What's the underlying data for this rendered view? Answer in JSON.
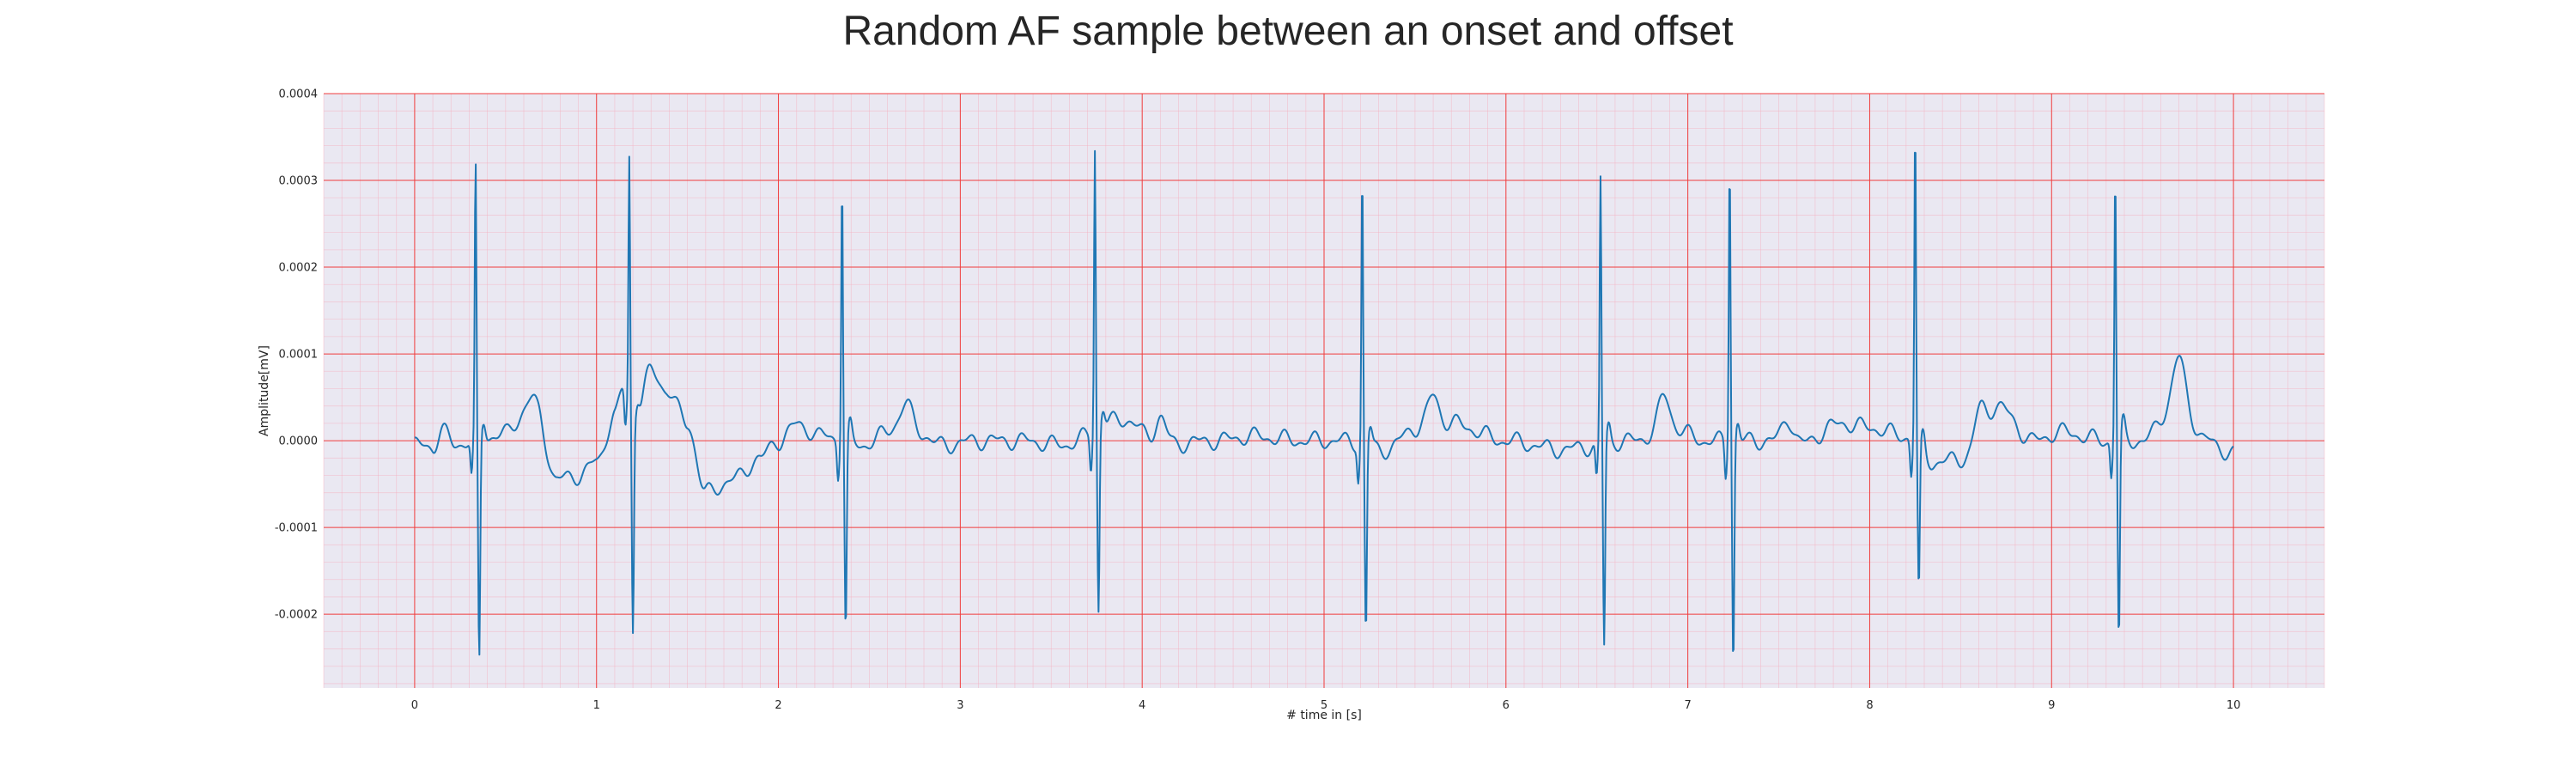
{
  "chart_data": {
    "type": "line",
    "title": "Random AF sample between an onset and offset",
    "xlabel": "# time in [s]",
    "ylabel": "Amplitude[mV]",
    "xlim": [
      -0.5,
      10.5
    ],
    "ylim": [
      -0.000285,
      0.0004
    ],
    "xticks": [
      0,
      1,
      2,
      3,
      4,
      5,
      6,
      7,
      8,
      9,
      10
    ],
    "yticks": [
      -0.0002,
      -0.0001,
      0.0,
      0.0001,
      0.0002,
      0.0003,
      0.0004
    ],
    "ytick_labels": [
      "-0.0002",
      "-0.0001",
      "0.0000",
      "0.0001",
      "0.0002",
      "0.0003",
      "0.0004"
    ],
    "grid": {
      "major": true,
      "minor": true,
      "major_color": "#f03c3c",
      "minor_color": "#f5b0c0"
    },
    "background_color": "#eae8f2",
    "series": [
      {
        "color": "#1f77b4",
        "sample_interval_s": 0.02,
        "x_start": 0.0,
        "x_end": 10.0,
        "baseline_points": [
          [
            0.0,
            -5e-06
          ],
          [
            0.1,
            -7e-06
          ],
          [
            0.15,
            1.2e-05
          ],
          [
            0.22,
            -5e-06
          ],
          [
            0.3,
            0.0
          ],
          [
            0.5,
            8e-06
          ],
          [
            0.6,
            3e-05
          ],
          [
            0.68,
            2e-05
          ],
          [
            0.78,
            -4.5e-05
          ],
          [
            0.9,
            -4e-05
          ],
          [
            1.0,
            -2.5e-05
          ],
          [
            1.1,
            3e-05
          ],
          [
            1.15,
            6e-05
          ],
          [
            1.2,
            2e-05
          ],
          [
            1.3,
            8e-05
          ],
          [
            1.38,
            6e-05
          ],
          [
            1.5,
            2e-05
          ],
          [
            1.6,
            -6e-05
          ],
          [
            1.75,
            -4.5e-05
          ],
          [
            1.9,
            -2e-05
          ],
          [
            2.0,
            0.0
          ],
          [
            2.1,
            1.8e-05
          ],
          [
            2.25,
            5e-06
          ],
          [
            2.45,
            -5e-06
          ],
          [
            2.7,
            2e-05
          ],
          [
            2.9,
            -5e-06
          ],
          [
            3.1,
            0.0
          ],
          [
            3.35,
            0.0
          ],
          [
            3.55,
            -5e-06
          ],
          [
            3.9,
            2.5e-05
          ],
          [
            4.1,
            -5e-06
          ],
          [
            4.4,
            0.0
          ],
          [
            4.6,
            5e-06
          ],
          [
            4.9,
            0.0
          ],
          [
            5.1,
            0.0
          ],
          [
            5.35,
            -1e-05
          ],
          [
            5.5,
            1.5e-05
          ],
          [
            5.7,
            2e-05
          ],
          [
            6.0,
            0.0
          ],
          [
            6.3,
            -1e-05
          ],
          [
            6.7,
            0.0
          ],
          [
            6.9,
            1.5e-05
          ],
          [
            7.1,
            0.0
          ],
          [
            7.45,
            0.0
          ],
          [
            7.6,
            -5e-06
          ],
          [
            7.85,
            2e-05
          ],
          [
            8.0,
            1.5e-05
          ],
          [
            8.2,
            5e-06
          ],
          [
            8.35,
            -2.5e-05
          ],
          [
            8.55,
            -2e-05
          ],
          [
            8.7,
            4e-05
          ],
          [
            8.9,
            0.0
          ],
          [
            9.05,
            1e-05
          ],
          [
            9.3,
            0.0
          ],
          [
            9.5,
            0.0
          ],
          [
            9.7,
            5e-05
          ],
          [
            9.85,
            0.0
          ],
          [
            10.0,
            -1.5e-05
          ]
        ],
        "qrs_complexes": [
          {
            "t": 0.335,
            "r_peak": 0.000315,
            "s_trough": -0.00026
          },
          {
            "t": 1.18,
            "r_peak": 0.000293,
            "s_trough": -0.00024
          },
          {
            "t": 2.35,
            "r_peak": 0.000307,
            "s_trough": -0.00022
          },
          {
            "t": 3.74,
            "r_peak": 0.000327,
            "s_trough": -0.00021
          },
          {
            "t": 5.21,
            "r_peak": 0.000315,
            "s_trough": -0.00022
          },
          {
            "t": 6.52,
            "r_peak": 0.000305,
            "s_trough": -0.000235
          },
          {
            "t": 7.23,
            "r_peak": 0.00033,
            "s_trough": -0.000255
          },
          {
            "t": 8.25,
            "r_peak": 0.00037,
            "s_trough": -0.00017
          },
          {
            "t": 9.35,
            "r_peak": 0.000315,
            "s_trough": -0.000233
          }
        ],
        "t_waves": [
          {
            "t": 0.65,
            "amp": 2.5e-05
          },
          {
            "t": 2.7,
            "amp": 2.2e-05
          },
          {
            "t": 4.1,
            "amp": 3.2e-05
          },
          {
            "t": 5.6,
            "amp": 3.5e-05
          },
          {
            "t": 6.87,
            "amp": 3.8e-05
          },
          {
            "t": 7.55,
            "amp": 3e-05
          },
          {
            "t": 8.6,
            "amp": 4e-05
          },
          {
            "t": 9.7,
            "amp": 4.5e-05
          }
        ],
        "fibrillatory_wave_amplitude": 7e-06
      }
    ]
  }
}
